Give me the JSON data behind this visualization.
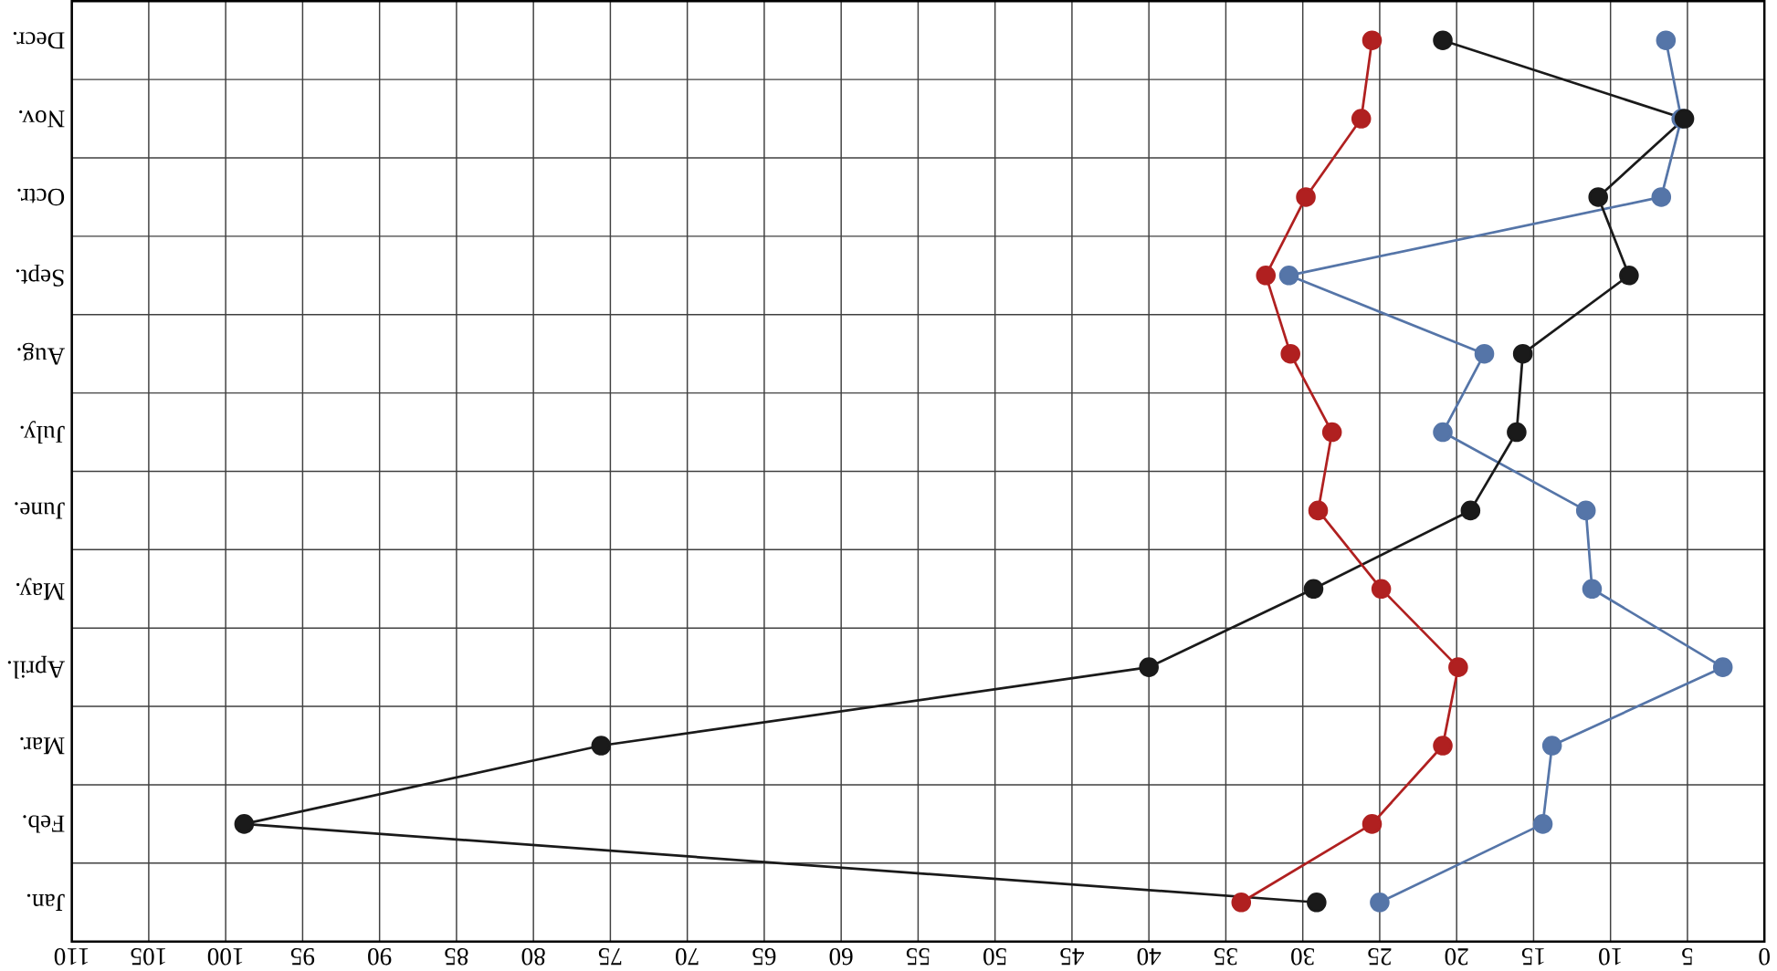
{
  "chart_data": {
    "type": "line",
    "orientation": "horizontal",
    "grid": true,
    "marker": "circle",
    "categories": [
      "Decr.",
      "Nov.",
      "Octr.",
      "Sept.",
      "Aug.",
      "July.",
      "June.",
      "May.",
      "April.",
      "Mar.",
      "Feb.",
      "Jan."
    ],
    "xlim": [
      110,
      0
    ],
    "xticks": [
      110,
      105,
      100,
      95,
      90,
      85,
      80,
      75,
      70,
      65,
      60,
      55,
      50,
      45,
      40,
      35,
      30,
      25,
      20,
      15,
      10,
      5,
      0
    ],
    "series": [
      {
        "color": "#b02020",
        "values": [
          25.5,
          26.2,
          29.8,
          32.4,
          30.8,
          28.1,
          29.0,
          24.9,
          19.9,
          20.9,
          25.5,
          34.0
        ]
      },
      {
        "color": "#1a1a1a",
        "values": [
          20.9,
          5.2,
          10.8,
          8.8,
          15.7,
          16.1,
          19.1,
          29.3,
          40.0,
          75.6,
          98.8,
          29.1
        ]
      },
      {
        "color": "#5575a8",
        "values": [
          6.4,
          5.4,
          6.7,
          30.9,
          18.2,
          20.9,
          11.6,
          11.2,
          2.7,
          13.8,
          14.4,
          25.0
        ]
      }
    ]
  }
}
